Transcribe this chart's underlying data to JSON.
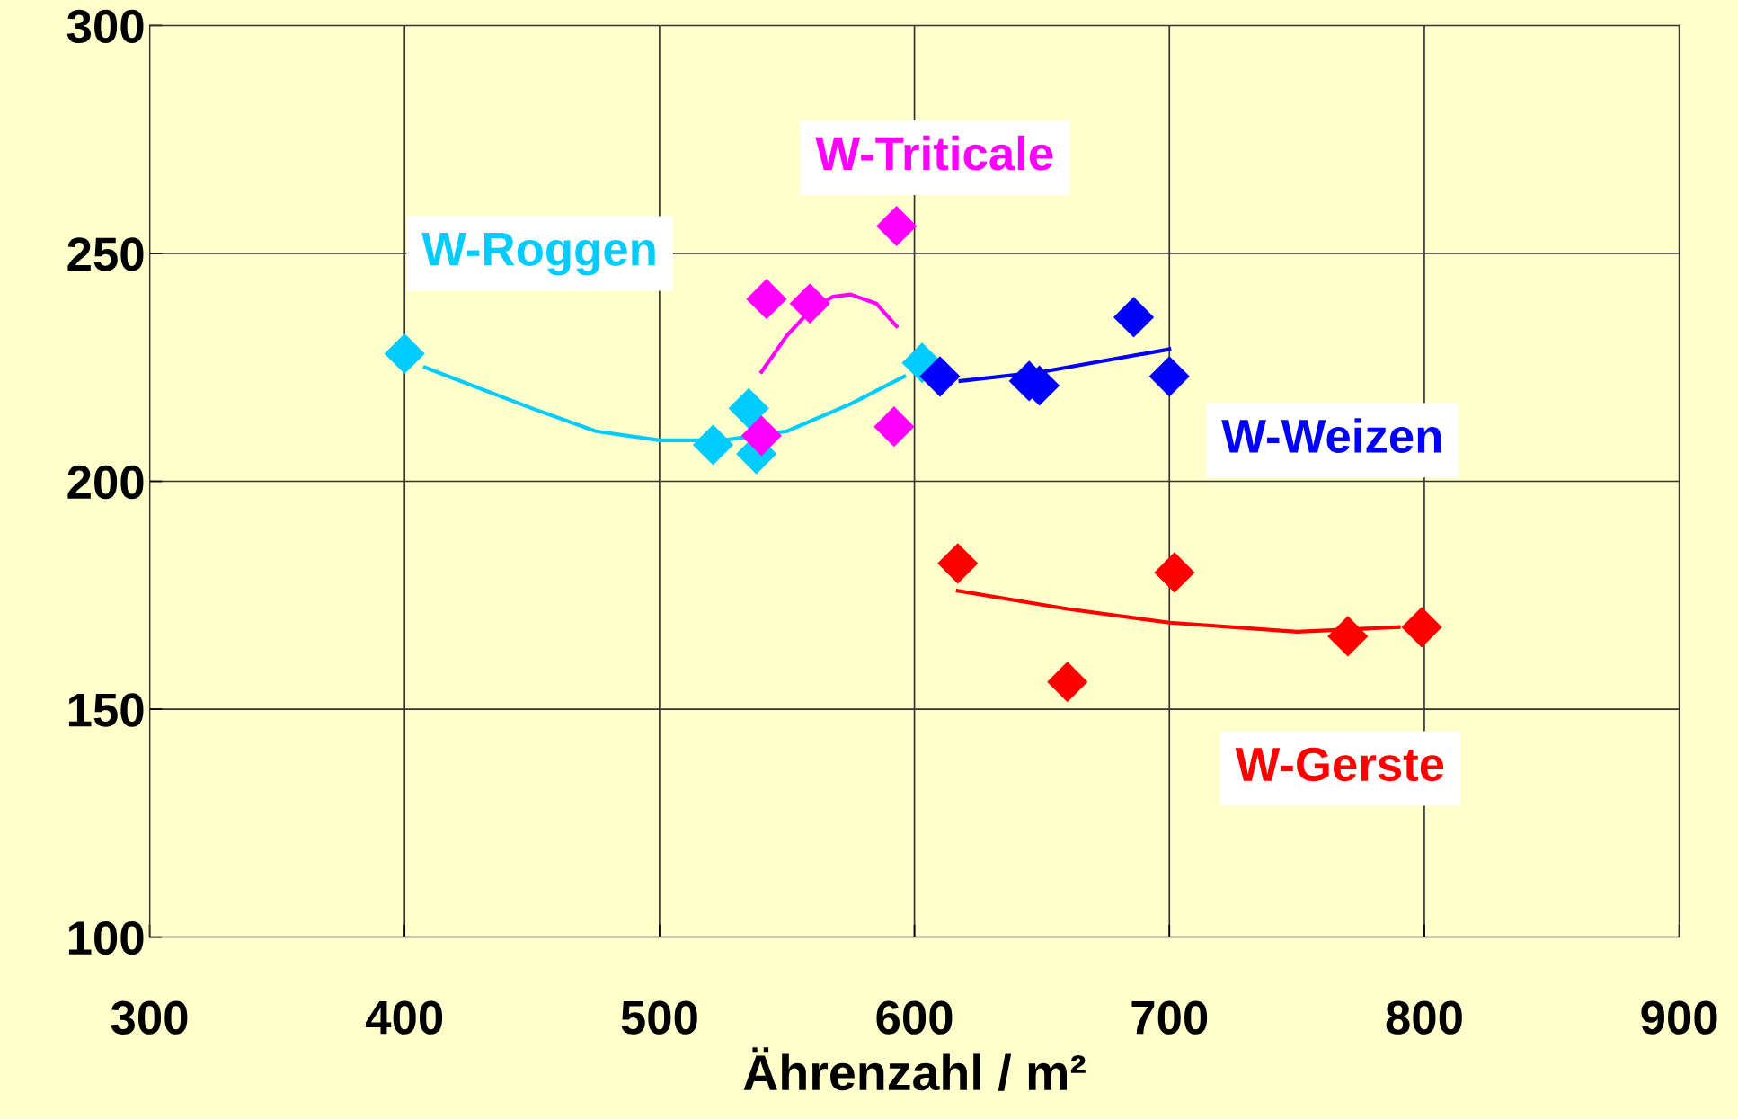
{
  "chart_data": {
    "type": "scatter",
    "xlabel": "Ährenzahl / m²",
    "xlim": [
      300,
      900
    ],
    "ylim": [
      100,
      300
    ],
    "xticks": [
      300,
      400,
      500,
      600,
      700,
      800,
      900
    ],
    "yticks": [
      100,
      150,
      200,
      250,
      300
    ],
    "grid": true,
    "legend": false,
    "marker": "diamond",
    "series": [
      {
        "name": "W-Roggen",
        "color": "#00ccff",
        "x": [
          400,
          521,
          535,
          538,
          603
        ],
        "values": [
          228,
          208,
          216,
          206,
          226
        ]
      },
      {
        "type": "line",
        "color": "#00ccff",
        "marker": "none",
        "x": [
          408,
          450,
          475,
          500,
          525,
          550,
          575,
          596
        ],
        "values": [
          225,
          216,
          211,
          209,
          209,
          211,
          217,
          223
        ]
      },
      {
        "name": "W-Triticale",
        "color": "#ff00ff",
        "x": [
          542,
          559,
          540,
          593,
          592
        ],
        "values": [
          240,
          239,
          210,
          256,
          212
        ]
      },
      {
        "type": "line",
        "color": "#ff00ff",
        "marker": "none",
        "x": [
          540,
          550,
          560,
          568,
          575,
          585,
          593
        ],
        "values": [
          224,
          232,
          238,
          240.5,
          241,
          239,
          234
        ]
      },
      {
        "name": "W-Weizen",
        "color": "#0000ff",
        "x": [
          610,
          645,
          649,
          686,
          700
        ],
        "values": [
          223,
          222,
          221,
          236,
          223
        ]
      },
      {
        "type": "line",
        "color": "#0000ff",
        "marker": "none",
        "x": [
          618,
          650,
          700
        ],
        "values": [
          222,
          224,
          229
        ]
      },
      {
        "name": "W-Gerste",
        "color": "#ff0000",
        "x": [
          617,
          660,
          702,
          770,
          799
        ],
        "values": [
          182,
          156,
          180,
          166,
          168
        ]
      },
      {
        "type": "line",
        "color": "#ff0000",
        "marker": "none",
        "x": [
          617,
          660,
          700,
          750,
          790
        ],
        "values": [
          176,
          172,
          169,
          167,
          168
        ]
      }
    ]
  }
}
